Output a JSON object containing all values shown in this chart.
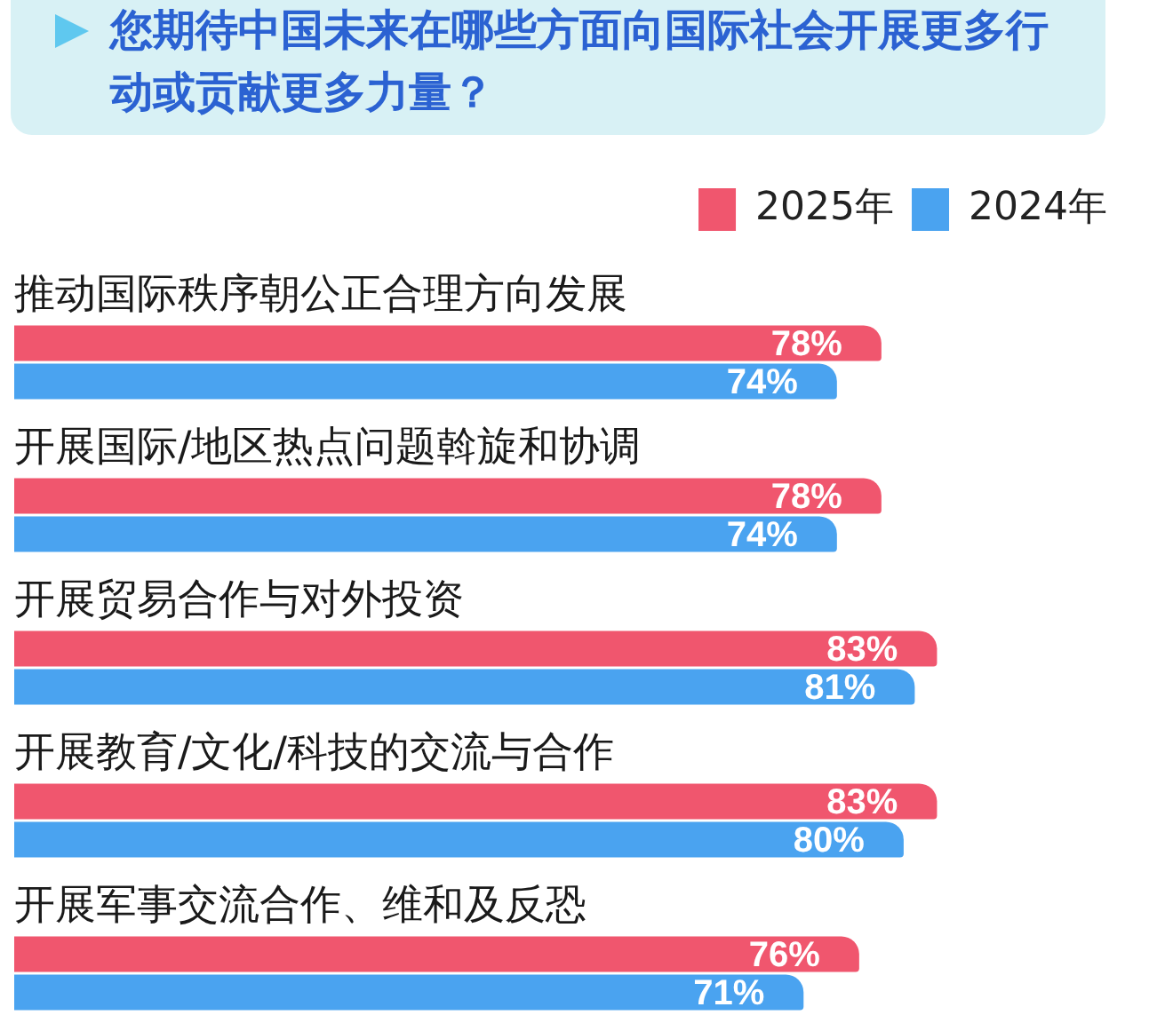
{
  "chart_data": {
    "type": "bar",
    "orientation": "horizontal",
    "title": "您期待中国未来在哪些方面向国际社会开展更多行动或贡献更多力量？",
    "categories": [
      "推动国际秩序朝公正合理方向发展",
      "开展国际/地区热点问题斡旋和协调",
      "开展贸易合作与对外投资",
      "开展教育/文化/科技的交流与合作",
      "开展军事交流合作、维和及反恐"
    ],
    "series": [
      {
        "name": "2025年",
        "color": "#f0566e",
        "values": [
          78,
          78,
          83,
          83,
          76
        ],
        "value_labels": [
          "78%",
          "78%",
          "83%",
          "83%",
          "76%"
        ]
      },
      {
        "name": "2024年",
        "color": "#4aa3f0",
        "values": [
          74,
          74,
          81,
          80,
          71
        ],
        "value_labels": [
          "74%",
          "74%",
          "81%",
          "80%",
          "71%"
        ]
      }
    ],
    "tick_labels": false,
    "legend": "top right"
  }
}
